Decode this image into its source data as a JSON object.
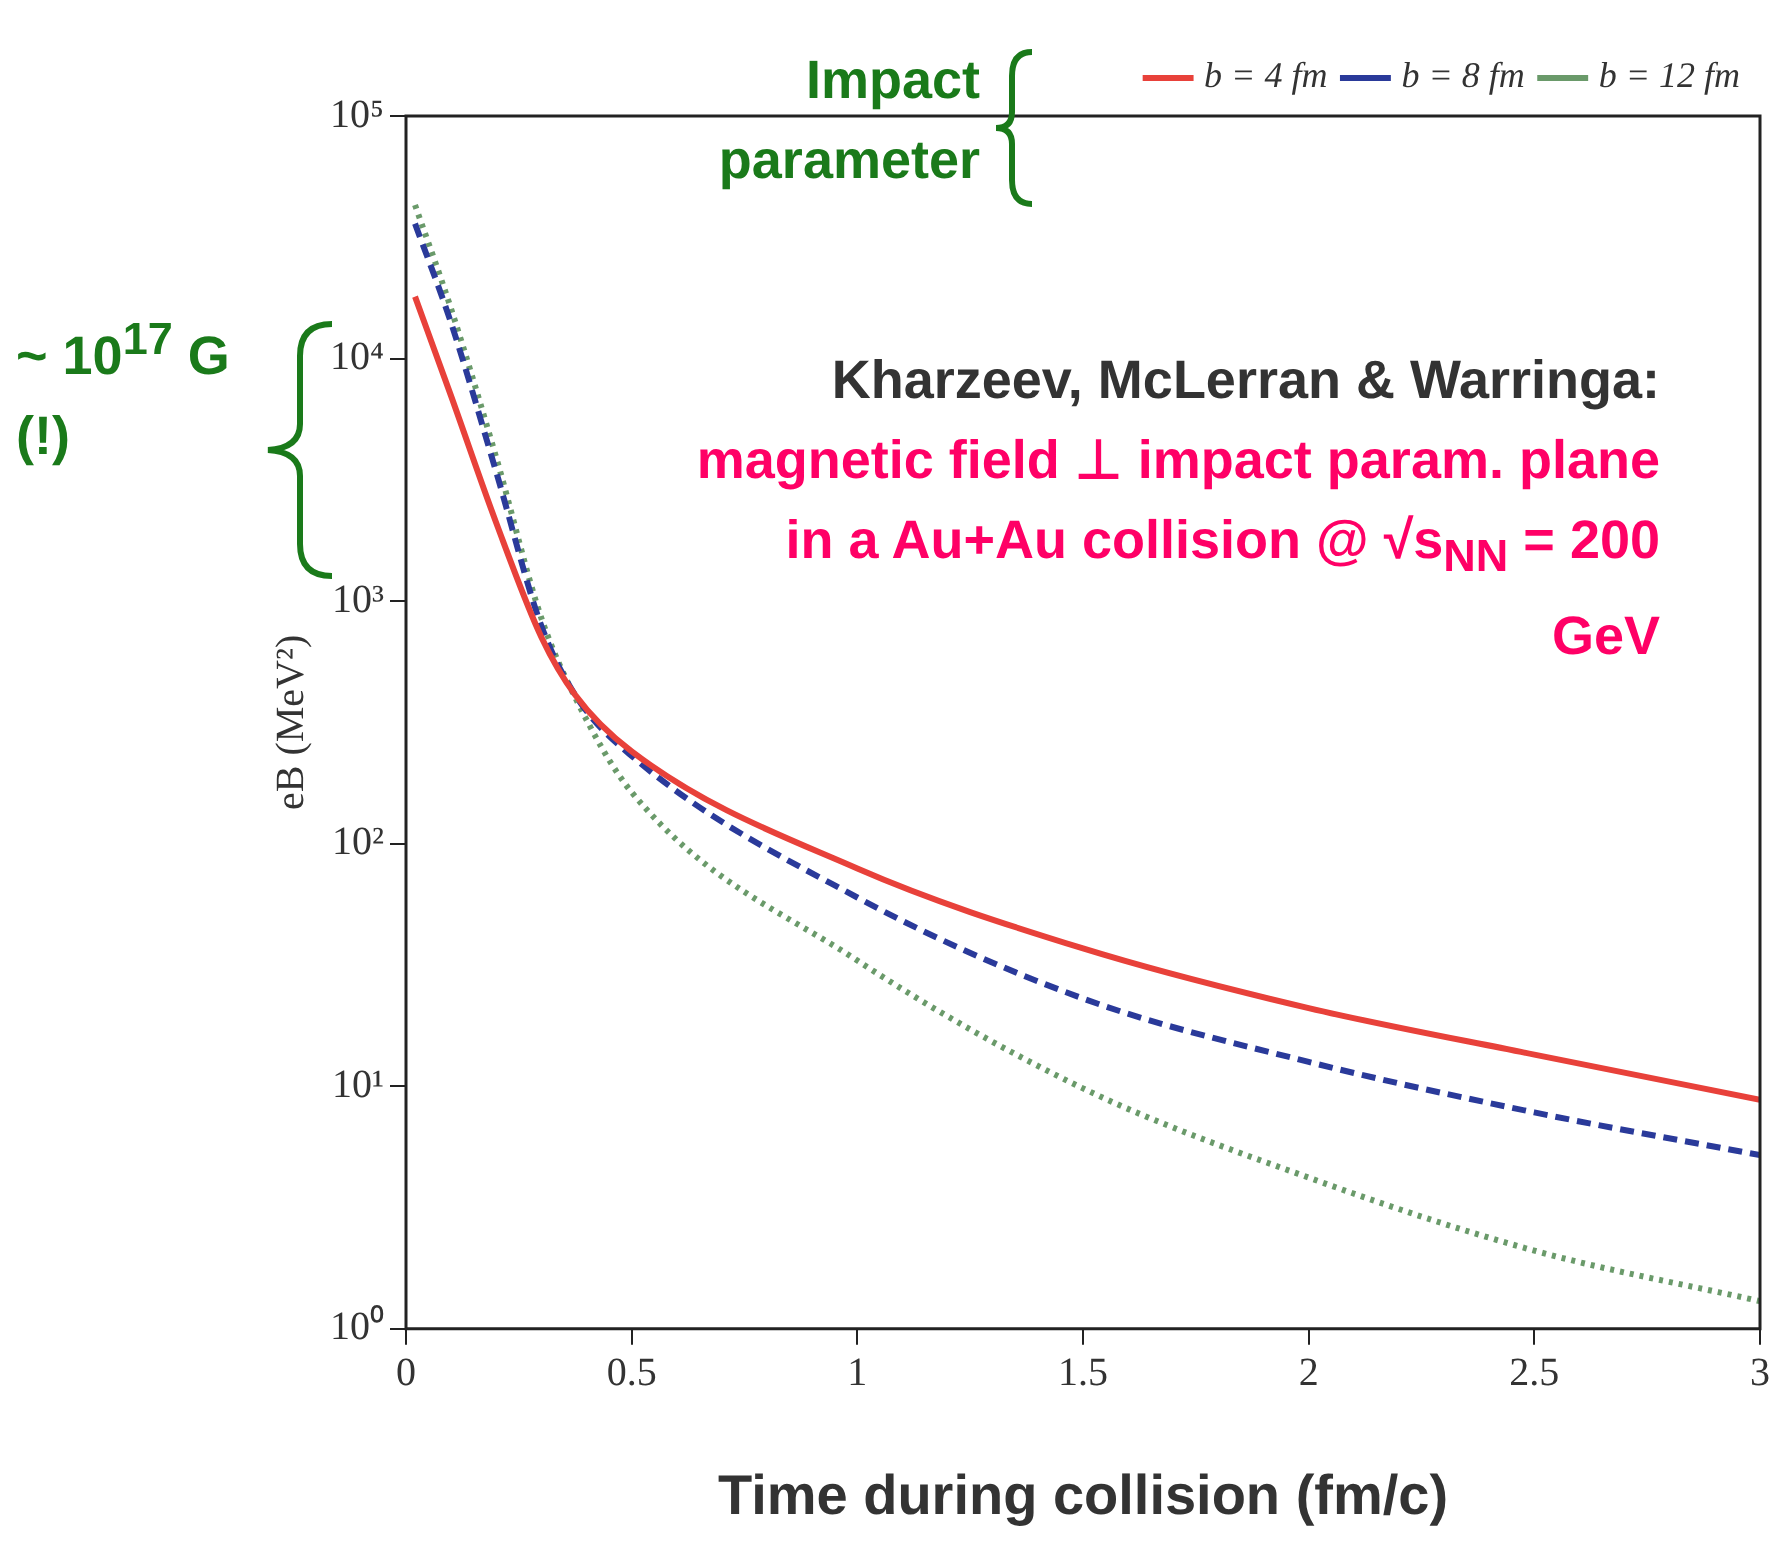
{
  "chart_data": {
    "type": "line",
    "xlabel": "Time during collision (fm/c)",
    "ylabel": "eB (MeV²)",
    "log": "y",
    "xlim": [
      0,
      3
    ],
    "ylim": [
      1,
      100000
    ],
    "xticks": [
      0,
      0.5,
      1,
      1.5,
      2,
      2.5,
      3
    ],
    "yticks": [
      {
        "value": 1,
        "label": "10⁰"
      },
      {
        "value": 10,
        "label": "10¹"
      },
      {
        "value": 100,
        "label": "10²"
      },
      {
        "value": 1000,
        "label": "10³"
      },
      {
        "value": 10000,
        "label": "10⁴"
      },
      {
        "value": 100000,
        "label": "10⁵"
      }
    ],
    "grid": false,
    "legend": "top right",
    "marker": "none",
    "series": [
      {
        "name": "b = 4 fm",
        "color": "#e8413a",
        "line_style": "solid",
        "x": [
          0.02,
          0.1,
          0.2,
          0.3,
          0.375,
          0.5,
          1,
          1.5,
          2,
          2.5,
          3
        ],
        "values": [
          18000,
          7000,
          2100,
          710,
          410,
          240,
          79,
          37,
          21,
          13.5,
          8.8
        ]
      },
      {
        "name": "b = 8 fm",
        "color": "#2a3a9a",
        "line_style": "dashed",
        "x": [
          0.02,
          0.1,
          0.2,
          0.3,
          0.375,
          0.5,
          1,
          1.5,
          2,
          2.5,
          3
        ],
        "values": [
          36000,
          14000,
          3400,
          790,
          410,
          230,
          60,
          23,
          12.6,
          7.8,
          5.2
        ]
      },
      {
        "name": "b = 12 fm",
        "color": "#6a9a6a",
        "line_style": "dotted",
        "x": [
          0.02,
          0.1,
          0.2,
          0.3,
          0.375,
          0.5,
          1,
          1.5,
          2,
          2.5,
          3
        ],
        "values": [
          43000,
          16000,
          3900,
          850,
          400,
          163,
          33,
          9.8,
          4.2,
          2.1,
          1.3
        ]
      }
    ],
    "annotations": [
      "Impact parameter",
      "~ 10$^{17}$ G (!)",
      "Kharzeev, McLerran & Warringa:",
      "magnetic field ⊥ impact param. plane in a Au+Au collision @ √s$_{NN}$ = 200 GeV"
    ]
  }
}
